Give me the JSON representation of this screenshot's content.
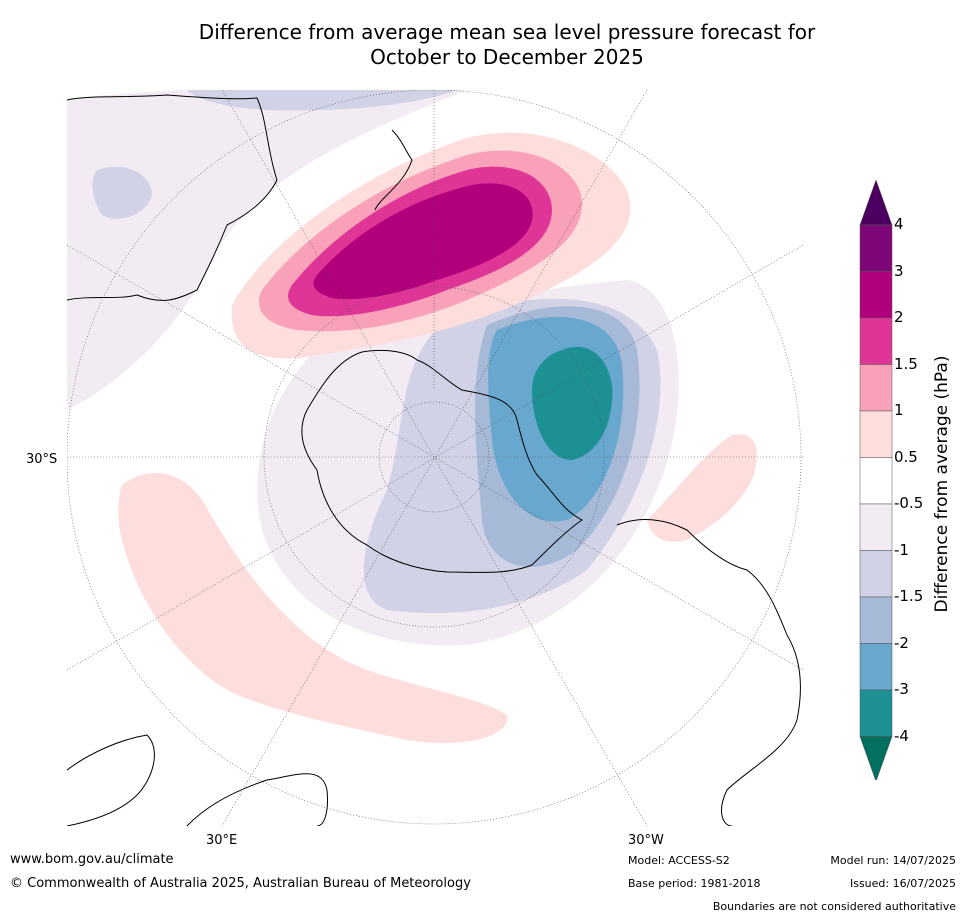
{
  "title_line1": "Difference from average mean sea level pressure forecast for",
  "title_line2": "October to December 2025",
  "lat_label": "30°S",
  "lon_labels": {
    "left": "30°E",
    "right": "30°W"
  },
  "colorbar": {
    "label": "Difference from average (hPa)",
    "ticks": [
      "4",
      "3",
      "2",
      "1.5",
      "1",
      "0.5",
      "-0.5",
      "-1",
      "-1.5",
      "-2",
      "-3",
      "-4"
    ],
    "colors": [
      "#4b0060",
      "#7e0778",
      "#b1007b",
      "#df3596",
      "#f9a1b8",
      "#fddedc",
      "#ffffff",
      "#f3ebf3",
      "#d1d2e5",
      "#a6b9d7",
      "#68a8cf",
      "#1d9094",
      "#007060"
    ]
  },
  "footer": {
    "website": "www.bom.gov.au/climate",
    "copyright": "© Commonwealth of Australia 2025, Australian Bureau of Meteorology",
    "model": "Model: ACCESS-S2",
    "base_period": "Base period: 1981-2018",
    "model_run": "Model run: 14/07/2025",
    "issued": "Issued: 16/07/2025",
    "disclaimer": "Boundaries are not considered authoritative"
  }
}
